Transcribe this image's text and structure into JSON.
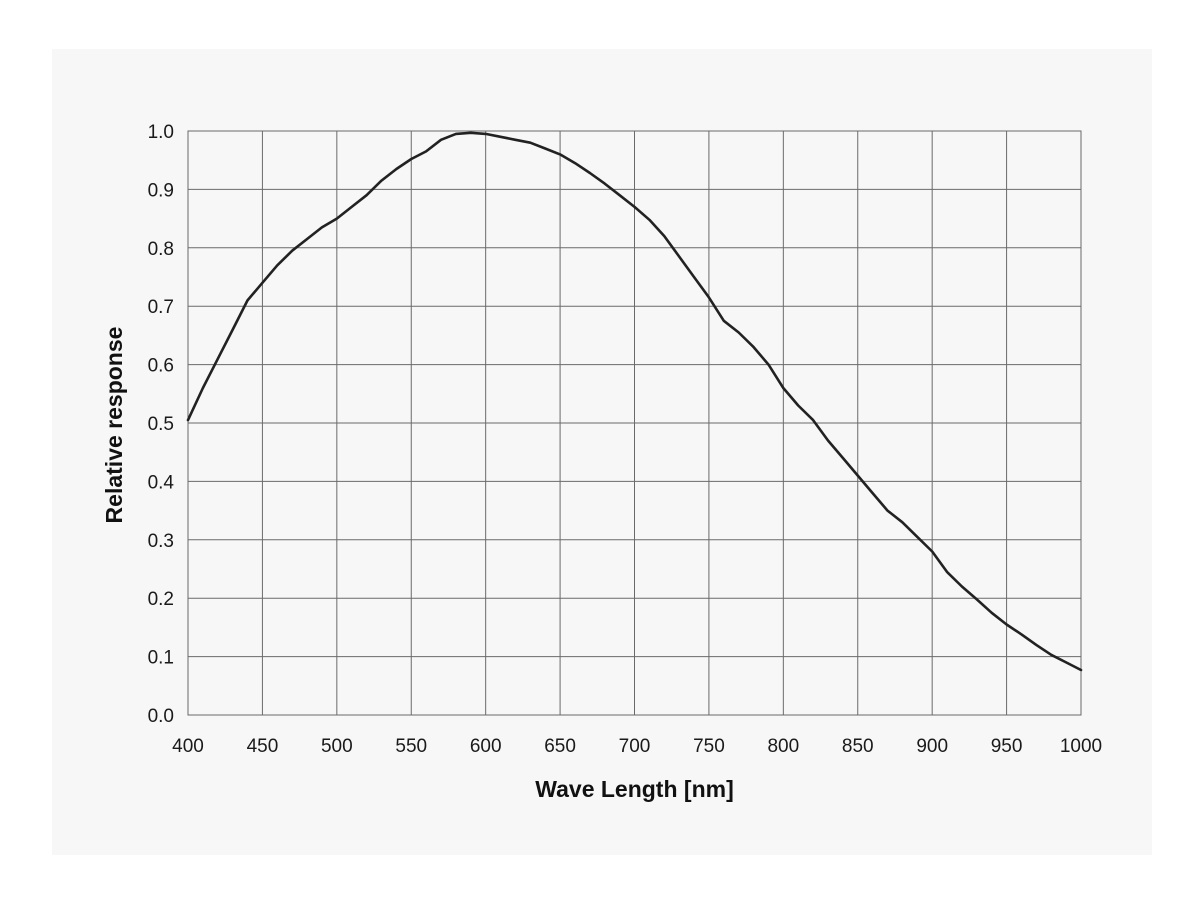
{
  "chart_data": {
    "type": "line",
    "title": "",
    "xlabel": "Wave Length [nm]",
    "ylabel": "Relative response",
    "xlim": [
      400,
      1000
    ],
    "ylim": [
      0.0,
      1.0
    ],
    "grid": true,
    "x_ticks": [
      "400",
      "450",
      "500",
      "550",
      "600",
      "650",
      "700",
      "750",
      "800",
      "850",
      "900",
      "950",
      "1000"
    ],
    "y_ticks": [
      "0.0",
      "0.1",
      "0.2",
      "0.3",
      "0.4",
      "0.5",
      "0.6",
      "0.7",
      "0.8",
      "0.9",
      "1.0"
    ],
    "series": [
      {
        "color": "#222222",
        "x": [
          400,
          410,
          420,
          430,
          440,
          450,
          460,
          470,
          480,
          490,
          500,
          510,
          520,
          530,
          540,
          550,
          560,
          570,
          580,
          590,
          600,
          610,
          620,
          630,
          640,
          650,
          660,
          670,
          680,
          690,
          700,
          710,
          720,
          730,
          740,
          750,
          760,
          770,
          780,
          790,
          800,
          810,
          820,
          830,
          840,
          850,
          860,
          870,
          880,
          890,
          900,
          910,
          920,
          930,
          940,
          950,
          960,
          970,
          980,
          990,
          1000
        ],
        "y": [
          0.505,
          0.56,
          0.61,
          0.66,
          0.71,
          0.74,
          0.77,
          0.795,
          0.815,
          0.835,
          0.85,
          0.87,
          0.89,
          0.915,
          0.935,
          0.952,
          0.965,
          0.985,
          0.995,
          0.997,
          0.995,
          0.99,
          0.985,
          0.98,
          0.97,
          0.96,
          0.945,
          0.928,
          0.91,
          0.89,
          0.87,
          0.848,
          0.82,
          0.785,
          0.75,
          0.715,
          0.675,
          0.655,
          0.63,
          0.6,
          0.56,
          0.53,
          0.505,
          0.47,
          0.44,
          0.41,
          0.38,
          0.35,
          0.33,
          0.305,
          0.28,
          0.245,
          0.22,
          0.198,
          0.175,
          0.155,
          0.138,
          0.12,
          0.103,
          0.09,
          0.077
        ]
      }
    ]
  }
}
